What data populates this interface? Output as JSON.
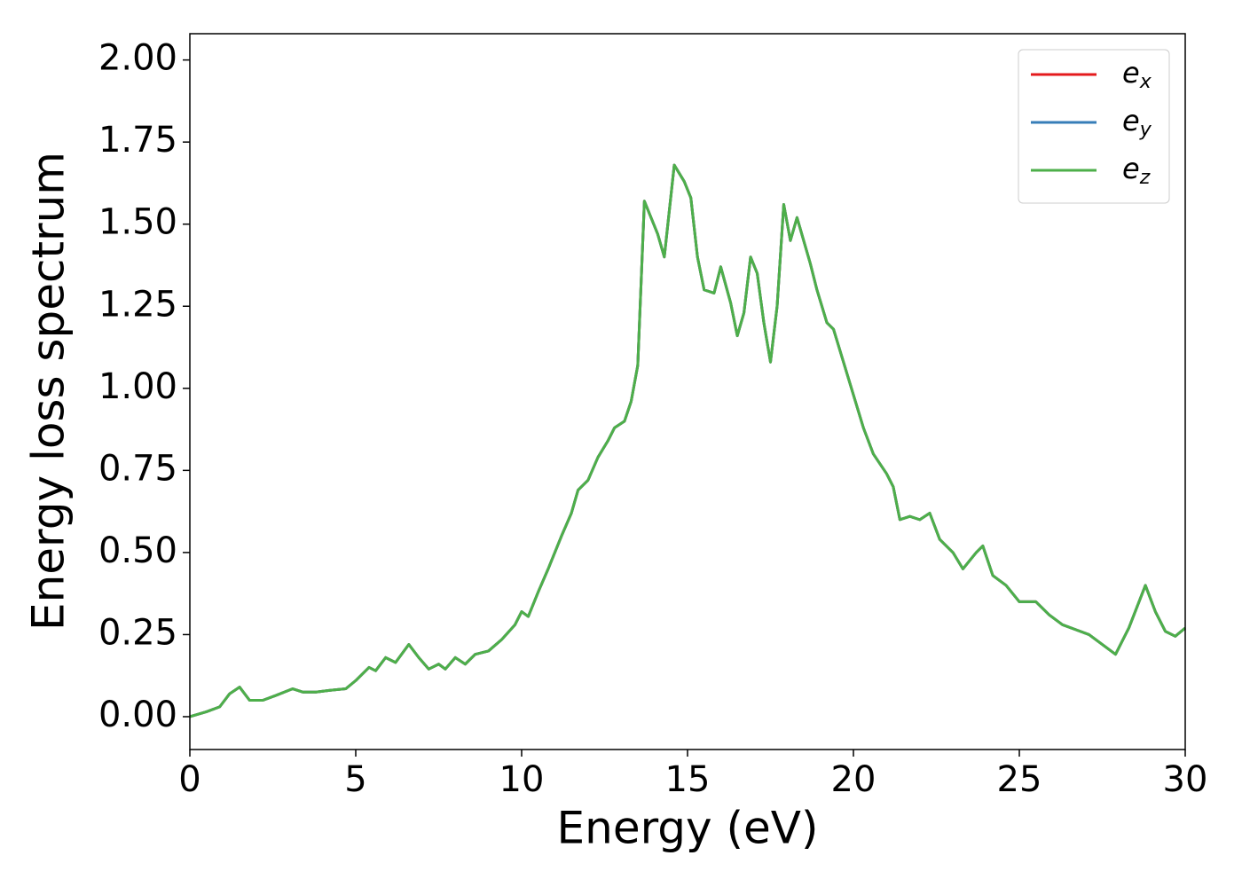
{
  "chart_data": {
    "type": "line",
    "xlabel": "Energy (eV)",
    "ylabel": "Energy loss spectrum",
    "xlim": [
      0,
      30
    ],
    "ylim": [
      -0.1,
      2.08
    ],
    "xticks": [
      0,
      5,
      10,
      15,
      20,
      25,
      30
    ],
    "yticks": [
      {
        "value": 0,
        "label": "0.00"
      },
      {
        "value": 0.25,
        "label": "0.25"
      },
      {
        "value": 0.5,
        "label": "0.50"
      },
      {
        "value": 0.75,
        "label": "0.75"
      },
      {
        "value": 1,
        "label": "1.00"
      },
      {
        "value": 1.25,
        "label": "1.25"
      },
      {
        "value": 1.5,
        "label": "1.50"
      },
      {
        "value": 1.75,
        "label": "1.75"
      },
      {
        "value": 2,
        "label": "2.00"
      }
    ],
    "legend": "upper right",
    "x": [
      0,
      0.5,
      0.9,
      1.2,
      1.5,
      1.8,
      2.2,
      2.6,
      3.1,
      3.4,
      3.8,
      4.2,
      4.7,
      5.0,
      5.4,
      5.6,
      5.9,
      6.2,
      6.6,
      6.9,
      7.2,
      7.5,
      7.7,
      8.0,
      8.3,
      8.6,
      9.0,
      9.4,
      9.8,
      10.0,
      10.2,
      10.5,
      10.8,
      11.2,
      11.5,
      11.7,
      12.0,
      12.3,
      12.6,
      12.8,
      13.1,
      13.3,
      13.5,
      13.7,
      13.9,
      14.1,
      14.3,
      14.6,
      14.9,
      15.1,
      15.3,
      15.5,
      15.8,
      16.0,
      16.3,
      16.5,
      16.7,
      16.9,
      17.1,
      17.3,
      17.5,
      17.7,
      17.9,
      18.1,
      18.3,
      18.5,
      18.7,
      18.9,
      19.2,
      19.4,
      19.7,
      20.0,
      20.3,
      20.6,
      21.0,
      21.2,
      21.4,
      21.7,
      22.0,
      22.3,
      22.6,
      23.0,
      23.3,
      23.7,
      23.9,
      24.2,
      24.6,
      25.0,
      25.5,
      25.9,
      26.3,
      26.7,
      27.1,
      27.5,
      27.9,
      28.3,
      28.8,
      29.1,
      29.4,
      29.7,
      30.0
    ],
    "series": [
      {
        "name": "e",
        "subscript": "x",
        "color": "#e41a1c",
        "values": [
          0,
          0.015,
          0.03,
          0.07,
          0.09,
          0.05,
          0.05,
          0.065,
          0.085,
          0.075,
          0.075,
          0.08,
          0.085,
          0.11,
          0.15,
          0.14,
          0.18,
          0.165,
          0.22,
          0.18,
          0.145,
          0.16,
          0.145,
          0.18,
          0.16,
          0.19,
          0.2,
          0.235,
          0.28,
          0.32,
          0.305,
          0.38,
          0.45,
          0.55,
          0.62,
          0.69,
          0.72,
          0.79,
          0.84,
          0.88,
          0.9,
          0.96,
          1.07,
          1.57,
          1.52,
          1.47,
          1.4,
          1.68,
          1.63,
          1.58,
          1.4,
          1.3,
          1.29,
          1.37,
          1.26,
          1.16,
          1.23,
          1.4,
          1.35,
          1.2,
          1.08,
          1.25,
          1.56,
          1.45,
          1.52,
          1.45,
          1.38,
          1.3,
          1.2,
          1.18,
          1.08,
          0.98,
          0.88,
          0.8,
          0.74,
          0.7,
          0.6,
          0.61,
          0.6,
          0.62,
          0.54,
          0.5,
          0.45,
          0.5,
          0.52,
          0.43,
          0.4,
          0.35,
          0.35,
          0.31,
          0.28,
          0.265,
          0.25,
          0.22,
          0.19,
          0.27,
          0.4,
          0.32,
          0.26,
          0.245,
          0.27
        ]
      },
      {
        "name": "e",
        "subscript": "y",
        "color": "#377eb8",
        "values": [
          0,
          0.015,
          0.03,
          0.07,
          0.09,
          0.05,
          0.05,
          0.065,
          0.085,
          0.075,
          0.075,
          0.08,
          0.085,
          0.11,
          0.15,
          0.14,
          0.18,
          0.165,
          0.22,
          0.18,
          0.145,
          0.16,
          0.145,
          0.18,
          0.16,
          0.19,
          0.2,
          0.235,
          0.28,
          0.32,
          0.305,
          0.38,
          0.45,
          0.55,
          0.62,
          0.69,
          0.72,
          0.79,
          0.84,
          0.88,
          0.9,
          0.96,
          1.07,
          1.57,
          1.52,
          1.47,
          1.4,
          1.68,
          1.63,
          1.58,
          1.4,
          1.3,
          1.29,
          1.37,
          1.26,
          1.16,
          1.23,
          1.4,
          1.35,
          1.2,
          1.08,
          1.25,
          1.56,
          1.45,
          1.52,
          1.45,
          1.38,
          1.3,
          1.2,
          1.18,
          1.08,
          0.98,
          0.88,
          0.8,
          0.74,
          0.7,
          0.6,
          0.61,
          0.6,
          0.62,
          0.54,
          0.5,
          0.45,
          0.5,
          0.52,
          0.43,
          0.4,
          0.35,
          0.35,
          0.31,
          0.28,
          0.265,
          0.25,
          0.22,
          0.19,
          0.27,
          0.4,
          0.32,
          0.26,
          0.245,
          0.27
        ]
      },
      {
        "name": "e",
        "subscript": "z",
        "color": "#4daf4a",
        "values": [
          0,
          0.015,
          0.03,
          0.07,
          0.09,
          0.05,
          0.05,
          0.065,
          0.085,
          0.075,
          0.075,
          0.08,
          0.085,
          0.11,
          0.15,
          0.14,
          0.18,
          0.165,
          0.22,
          0.18,
          0.145,
          0.16,
          0.145,
          0.18,
          0.16,
          0.19,
          0.2,
          0.235,
          0.28,
          0.32,
          0.305,
          0.38,
          0.45,
          0.55,
          0.62,
          0.69,
          0.72,
          0.79,
          0.84,
          0.88,
          0.9,
          0.96,
          1.07,
          1.57,
          1.52,
          1.47,
          1.4,
          1.68,
          1.63,
          1.58,
          1.4,
          1.3,
          1.29,
          1.37,
          1.26,
          1.16,
          1.23,
          1.4,
          1.35,
          1.2,
          1.08,
          1.25,
          1.56,
          1.45,
          1.52,
          1.45,
          1.38,
          1.3,
          1.2,
          1.18,
          1.08,
          0.98,
          0.88,
          0.8,
          0.74,
          0.7,
          0.6,
          0.61,
          0.6,
          0.62,
          0.54,
          0.5,
          0.45,
          0.5,
          0.52,
          0.43,
          0.4,
          0.35,
          0.35,
          0.31,
          0.28,
          0.265,
          0.25,
          0.22,
          0.19,
          0.27,
          0.4,
          0.32,
          0.26,
          0.245,
          0.27
        ]
      }
    ]
  }
}
